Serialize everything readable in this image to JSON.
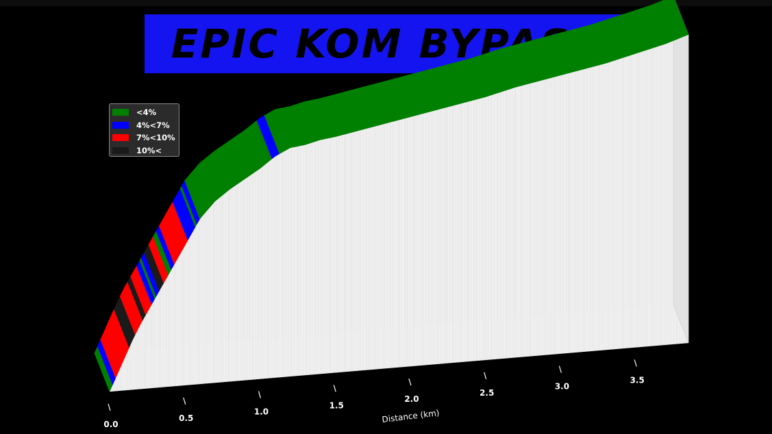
{
  "title": "EPIC KOM BYPASS",
  "chart_data": {
    "type": "area",
    "xlabel": "Distance (km)",
    "ylabel": "",
    "xlim": [
      0,
      3.9
    ],
    "xticks": [
      {
        "value": 0.0,
        "label": "0.0"
      },
      {
        "value": 0.5,
        "label": "0.5"
      },
      {
        "value": 1.0,
        "label": "1.0"
      },
      {
        "value": 1.5,
        "label": "1.5"
      },
      {
        "value": 2.0,
        "label": "2.0"
      },
      {
        "value": 2.5,
        "label": "2.5"
      },
      {
        "value": 3.0,
        "label": "3.0"
      },
      {
        "value": 3.5,
        "label": "3.5"
      }
    ],
    "legend": {
      "position": "top-left",
      "entries": [
        {
          "label": "<4%",
          "color": "#008000"
        },
        {
          "label": "4%<7%",
          "color": "#0000ff"
        },
        {
          "label": "7%<10%",
          "color": "#ff0000"
        },
        {
          "label": "10%<",
          "color": "#1a1a1a"
        }
      ]
    },
    "profile_x": [
      0.0,
      0.05,
      0.1,
      0.15,
      0.2,
      0.25,
      0.3,
      0.35,
      0.4,
      0.45,
      0.5,
      0.55,
      0.6,
      0.7,
      0.8,
      0.9,
      1.0,
      1.1,
      1.2,
      1.3,
      1.4,
      1.5,
      1.7,
      1.9,
      2.1,
      2.3,
      2.5,
      2.7,
      2.9,
      3.1,
      3.3,
      3.5,
      3.7,
      3.85
    ],
    "profile_y": [
      0,
      9,
      18,
      27,
      35,
      42,
      49,
      56,
      63,
      70,
      77,
      84,
      91,
      100,
      106,
      111,
      116,
      122,
      126,
      127,
      129,
      130,
      133,
      136,
      139,
      142,
      145,
      149,
      152,
      155,
      158,
      162,
      166,
      170
    ],
    "segments": [
      {
        "from": 0.0,
        "to": 0.02,
        "cls": "<4%"
      },
      {
        "from": 0.02,
        "to": 0.04,
        "cls": "4%<7%"
      },
      {
        "from": 0.04,
        "to": 0.13,
        "cls": "7%<10%"
      },
      {
        "from": 0.13,
        "to": 0.17,
        "cls": "10%<"
      },
      {
        "from": 0.17,
        "to": 0.22,
        "cls": "7%<10%"
      },
      {
        "from": 0.22,
        "to": 0.24,
        "cls": "10%<"
      },
      {
        "from": 0.24,
        "to": 0.28,
        "cls": "7%<10%"
      },
      {
        "from": 0.28,
        "to": 0.3,
        "cls": "4%<7%"
      },
      {
        "from": 0.3,
        "to": 0.31,
        "cls": "<4%"
      },
      {
        "from": 0.31,
        "to": 0.33,
        "cls": "4%<7%"
      },
      {
        "from": 0.33,
        "to": 0.36,
        "cls": "10%<"
      },
      {
        "from": 0.36,
        "to": 0.39,
        "cls": "7%<10%"
      },
      {
        "from": 0.39,
        "to": 0.41,
        "cls": "<4%"
      },
      {
        "from": 0.41,
        "to": 0.43,
        "cls": "4%<7%"
      },
      {
        "from": 0.43,
        "to": 0.52,
        "cls": "7%<10%"
      },
      {
        "from": 0.52,
        "to": 0.57,
        "cls": "4%<7%"
      },
      {
        "from": 0.57,
        "to": 0.58,
        "cls": "<4%"
      },
      {
        "from": 0.58,
        "to": 0.6,
        "cls": "4%<7%"
      },
      {
        "from": 0.6,
        "to": 1.08,
        "cls": "<4%"
      },
      {
        "from": 1.08,
        "to": 1.13,
        "cls": "4%<7%"
      },
      {
        "from": 1.13,
        "to": 3.85,
        "cls": "<4%"
      }
    ]
  }
}
